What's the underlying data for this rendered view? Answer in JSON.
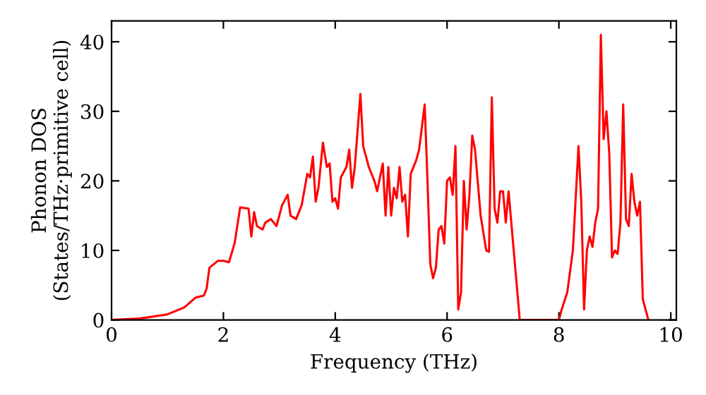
{
  "chart_data": {
    "type": "line",
    "xlabel": "Frequency (THz)",
    "ylabel": "Phonon DOS\n(States/THz·primitive cell)",
    "xlim": [
      0,
      10.1
    ],
    "ylim": [
      0,
      43
    ],
    "xticks": [
      0,
      2,
      4,
      6,
      8,
      10
    ],
    "yticks": [
      0,
      10,
      20,
      30,
      40
    ],
    "grid": false,
    "legend": false,
    "marker": "none",
    "line_style": "solid",
    "series": [
      {
        "color": "#ff0000",
        "x": [
          0,
          0.5,
          1.0,
          1.3,
          1.5,
          1.65,
          1.7,
          1.75,
          1.9,
          2.0,
          2.1,
          2.2,
          2.3,
          2.45,
          2.5,
          2.55,
          2.6,
          2.7,
          2.75,
          2.85,
          2.95,
          3.05,
          3.15,
          3.2,
          3.3,
          3.4,
          3.5,
          3.55,
          3.6,
          3.65,
          3.7,
          3.78,
          3.85,
          3.9,
          3.95,
          4.0,
          4.05,
          4.1,
          4.2,
          4.25,
          4.3,
          4.35,
          4.45,
          4.5,
          4.6,
          4.7,
          4.75,
          4.85,
          4.9,
          4.95,
          5.0,
          5.05,
          5.1,
          5.15,
          5.2,
          5.25,
          5.3,
          5.35,
          5.45,
          5.5,
          5.6,
          5.65,
          5.7,
          5.75,
          5.8,
          5.85,
          5.9,
          5.95,
          6.0,
          6.05,
          6.1,
          6.15,
          6.2,
          6.25,
          6.3,
          6.35,
          6.4,
          6.45,
          6.5,
          6.6,
          6.7,
          6.75,
          6.8,
          6.85,
          6.9,
          6.95,
          7.0,
          7.05,
          7.1,
          7.3,
          8.0,
          8.05,
          8.15,
          8.25,
          8.35,
          8.4,
          8.45,
          8.5,
          8.55,
          8.6,
          8.65,
          8.7,
          8.75,
          8.8,
          8.85,
          8.9,
          8.95,
          9.0,
          9.05,
          9.1,
          9.15,
          9.2,
          9.25,
          9.3,
          9.35,
          9.4,
          9.45,
          9.5,
          9.6
        ],
        "values": [
          0,
          0.2,
          0.8,
          1.8,
          3.2,
          3.5,
          4.5,
          7.5,
          8.5,
          8.5,
          8.3,
          11,
          16.2,
          16,
          12,
          15.5,
          13.5,
          13,
          14,
          14.5,
          13.5,
          16.5,
          18,
          15,
          14.5,
          16.5,
          21,
          20.5,
          23.5,
          17,
          19,
          25.5,
          22,
          22.5,
          17,
          17.5,
          16,
          20.5,
          22,
          24.5,
          19,
          22,
          32.5,
          25,
          22,
          20,
          18.5,
          22.5,
          15,
          22,
          15,
          19,
          17.5,
          22,
          17,
          18,
          12,
          21,
          23,
          24.5,
          31,
          20,
          8,
          6,
          7.5,
          13,
          13.5,
          11,
          20,
          20.5,
          18,
          25,
          1.5,
          4,
          20,
          13,
          18,
          26.5,
          24.5,
          15,
          10,
          9.8,
          32,
          16,
          14,
          18.5,
          18.5,
          14,
          18.5,
          0,
          0,
          1.5,
          4,
          10,
          25,
          17,
          1.5,
          10,
          12,
          10.5,
          14,
          16,
          41,
          26,
          30,
          24,
          9,
          10,
          9.5,
          14,
          31,
          14.5,
          13.5,
          21,
          17,
          15,
          17,
          3,
          0
        ]
      }
    ]
  }
}
